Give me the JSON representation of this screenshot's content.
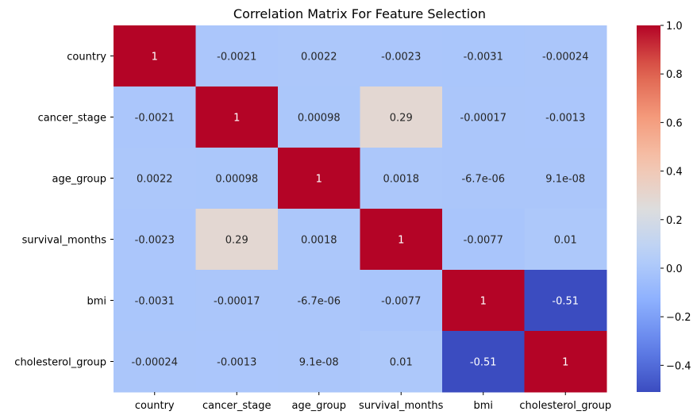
{
  "chart_data": {
    "type": "heatmap",
    "title": "Correlation Matrix For Feature Selection",
    "colormap": "coolwarm",
    "row_labels": [
      "country",
      "cancer_stage",
      "age_group",
      "survival_months",
      "bmi",
      "cholesterol_group"
    ],
    "col_labels": [
      "country",
      "cancer_stage",
      "age_group",
      "survival_months",
      "bmi",
      "cholesterol_group"
    ],
    "values": [
      [
        1,
        -0.0021,
        0.0022,
        -0.0023,
        -0.0031,
        -0.00024
      ],
      [
        -0.0021,
        1,
        0.00098,
        0.29,
        -0.00017,
        -0.0013
      ],
      [
        0.0022,
        0.00098,
        1,
        0.0018,
        -6.7e-06,
        9.1e-08
      ],
      [
        -0.0023,
        0.29,
        0.0018,
        1,
        -0.0077,
        0.01
      ],
      [
        -0.0031,
        -0.00017,
        -6.7e-06,
        -0.0077,
        1,
        -0.51
      ],
      [
        -0.00024,
        -0.0013,
        9.1e-08,
        0.01,
        -0.51,
        1
      ]
    ],
    "annotations": [
      [
        "1",
        "-0.0021",
        "0.0022",
        "-0.0023",
        "-0.0031",
        "-0.00024"
      ],
      [
        "-0.0021",
        "1",
        "0.00098",
        "0.29",
        "-0.00017",
        "-0.0013"
      ],
      [
        "0.0022",
        "0.00098",
        "1",
        "0.0018",
        "-6.7e-06",
        "9.1e-08"
      ],
      [
        "-0.0023",
        "0.29",
        "0.0018",
        "1",
        "-0.0077",
        "0.01"
      ],
      [
        "-0.0031",
        "-0.00017",
        "-6.7e-06",
        "-0.0077",
        "1",
        "-0.51"
      ],
      [
        "-0.00024",
        "-0.0013",
        "9.1e-08",
        "0.01",
        "-0.51",
        "1"
      ]
    ],
    "colorbar": {
      "range": [
        -0.51,
        1.0
      ],
      "ticks": [
        -0.4,
        -0.2,
        0.0,
        0.2,
        0.4,
        0.6,
        0.8,
        1.0
      ],
      "tick_labels": [
        "−0.4",
        "−0.2",
        "0.0",
        "0.2",
        "0.4",
        "0.6",
        "0.8",
        "1.0"
      ]
    }
  }
}
